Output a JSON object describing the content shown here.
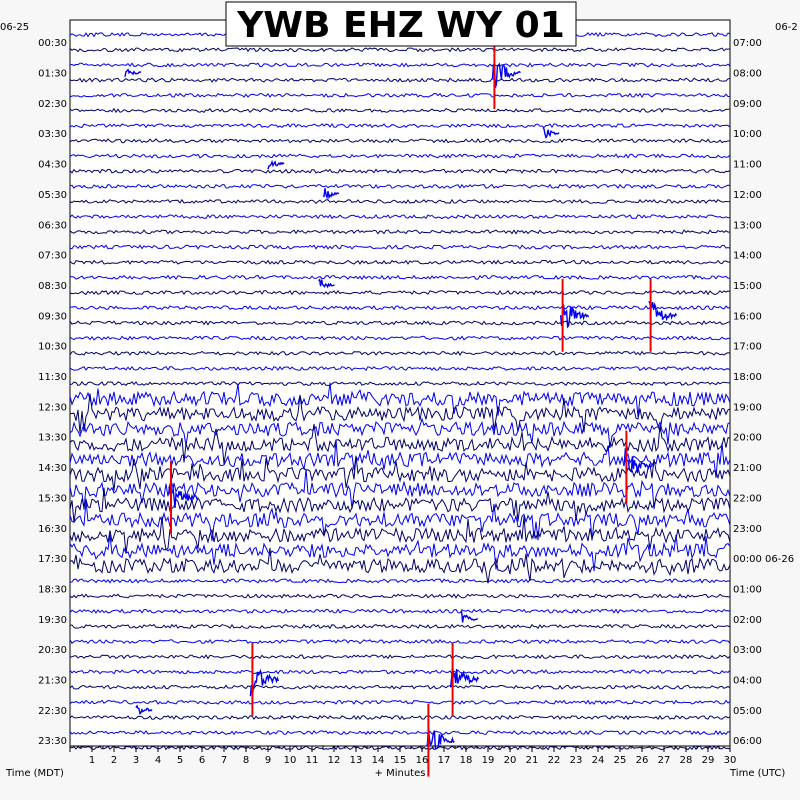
{
  "chart_data": {
    "type": "line",
    "title": "YWB EHZ WY 01",
    "left_date": "06-25",
    "right_date": "06-2",
    "xlabel": "+ Minutes",
    "left_axis_label": "Time (MDT)",
    "right_axis_label": "Time (UTC)",
    "x_ticks": [
      "1",
      "2",
      "3",
      "4",
      "5",
      "6",
      "7",
      "8",
      "9",
      "10",
      "11",
      "12",
      "13",
      "14",
      "15",
      "16",
      "17",
      "18",
      "19",
      "20",
      "21",
      "22",
      "23",
      "24",
      "25",
      "26",
      "27",
      "28",
      "29",
      "30"
    ],
    "xlim": [
      0,
      30
    ],
    "left_times": [
      "00:30",
      "01:30",
      "02:30",
      "03:30",
      "04:30",
      "05:30",
      "06:30",
      "07:30",
      "08:30",
      "09:30",
      "10:30",
      "11:30",
      "12:30",
      "13:30",
      "14:30",
      "15:30",
      "16:30",
      "17:30",
      "18:30",
      "19:30",
      "20:30",
      "21:30",
      "22:30",
      "23:30"
    ],
    "right_times": [
      "07:00",
      "08:00",
      "09:00",
      "10:00",
      "11:00",
      "12:00",
      "13:00",
      "14:00",
      "15:00",
      "16:00",
      "17:00",
      "18:00",
      "19:00",
      "20:00",
      "21:00",
      "22:00",
      "23:00",
      "00:00 06-26",
      "01:00",
      "02:00",
      "03:00",
      "04:00",
      "05:00",
      "06:00"
    ],
    "traces_per_label": 2,
    "trace_colors": [
      "#0000ee",
      "#000066"
    ],
    "event_color": "#ee0000",
    "events": [
      {
        "row": 1,
        "minute": 19.2,
        "amplitude": "large"
      },
      {
        "row": 1,
        "minute": 2.5,
        "amplitude": "small"
      },
      {
        "row": 3,
        "minute": 21.5,
        "amplitude": "small"
      },
      {
        "row": 4,
        "minute": 9.0,
        "amplitude": "small"
      },
      {
        "row": 5,
        "minute": 11.5,
        "amplitude": "small"
      },
      {
        "row": 8,
        "minute": 11.3,
        "amplitude": "small"
      },
      {
        "row": 9,
        "minute": 22.3,
        "amplitude": "large"
      },
      {
        "row": 9,
        "minute": 26.3,
        "amplitude": "large"
      },
      {
        "row": 14,
        "minute": 25.2,
        "amplitude": "large"
      },
      {
        "row": 15,
        "minute": 4.5,
        "amplitude": "large"
      },
      {
        "row": 19,
        "minute": 17.8,
        "amplitude": "small"
      },
      {
        "row": 21,
        "minute": 17.3,
        "amplitude": "large"
      },
      {
        "row": 21,
        "minute": 8.2,
        "amplitude": "large"
      },
      {
        "row": 22,
        "minute": 3.0,
        "amplitude": "small"
      },
      {
        "row": 23,
        "minute": 16.2,
        "amplitude": "large"
      }
    ],
    "noisy_rows": [
      12,
      13,
      14,
      15,
      16,
      17
    ]
  }
}
